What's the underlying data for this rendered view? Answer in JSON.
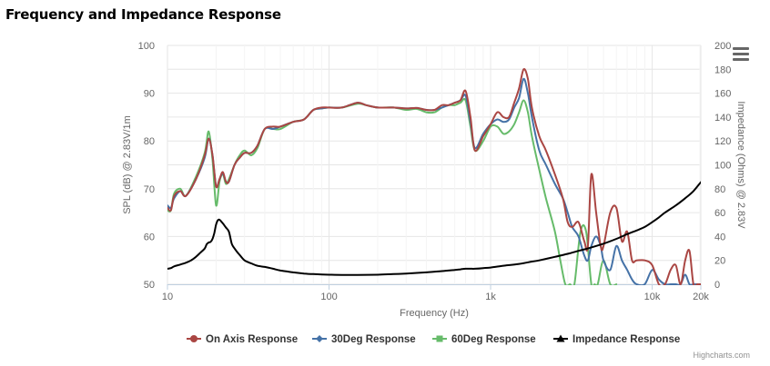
{
  "title": "Frequency and Impedance Response",
  "credits": "Highcharts.com",
  "menu_icon": "hamburger-menu-icon",
  "chart_data": {
    "type": "line",
    "title": "Frequency and Impedance Response",
    "xlabel": "Frequency (Hz)",
    "x_scale": "log",
    "xlim": [
      10,
      20000
    ],
    "x_ticks": [
      "10",
      "100",
      "1k",
      "10k",
      "20k"
    ],
    "ylabel": "SPL (dB) @ 2.83V/1m",
    "ylim": [
      50,
      100
    ],
    "y_ticks": [
      "50",
      "60",
      "70",
      "80",
      "90",
      "100"
    ],
    "y2label": "Impedance (Ohms) @ 2.83V",
    "y2lim": [
      0,
      200
    ],
    "y2_ticks": [
      "0",
      "20",
      "40",
      "60",
      "80",
      "100",
      "120",
      "140",
      "160",
      "180",
      "200"
    ],
    "grid": true,
    "legend_position": "bottom",
    "series": [
      {
        "name": "On Axis Response",
        "color": "#aa4643",
        "marker": "circle",
        "axis": "left",
        "x": [
          10,
          10.5,
          11,
          12,
          13,
          15,
          17,
          18,
          19,
          20,
          21,
          22,
          23,
          24,
          26,
          28,
          30,
          33,
          36,
          40,
          45,
          50,
          60,
          70,
          80,
          90,
          100,
          120,
          150,
          170,
          200,
          250,
          300,
          350,
          400,
          450,
          500,
          550,
          600,
          650,
          700,
          750,
          800,
          900,
          1000,
          1100,
          1200,
          1300,
          1400,
          1500,
          1600,
          1700,
          1800,
          2000,
          2200,
          2500,
          2800,
          3000,
          3200,
          3500,
          3800,
          4000,
          4200,
          4500,
          4800,
          5000,
          5500,
          6000,
          6500,
          7000,
          7500,
          8000,
          9000,
          10000,
          11000,
          12000,
          13000,
          14000,
          15000,
          16000,
          17000,
          18000,
          19000,
          20000
        ],
        "y": [
          66,
          65.5,
          68.5,
          69.5,
          68.5,
          72,
          77,
          80.5,
          77,
          70.5,
          72,
          73.5,
          71.5,
          71.5,
          75,
          76.5,
          77.5,
          77.5,
          79,
          82.5,
          83,
          83,
          84,
          84.5,
          86.5,
          87,
          87,
          87,
          88,
          87.5,
          87,
          87,
          86.8,
          86.9,
          86.5,
          86.5,
          87.5,
          87.5,
          88,
          88.5,
          90.5,
          85,
          78,
          81,
          83.5,
          86,
          85,
          85,
          88,
          91,
          95,
          93,
          87,
          81,
          78,
          73,
          68,
          63,
          62,
          63,
          59,
          58,
          73,
          65,
          58,
          58,
          65,
          66,
          59,
          61,
          55,
          55,
          55,
          54,
          50,
          50,
          53,
          54,
          50,
          55,
          57,
          50,
          50,
          50
        ]
      },
      {
        "name": "30Deg Response",
        "color": "#4572a7",
        "marker": "diamond",
        "axis": "left",
        "x": [
          10,
          10.5,
          11,
          12,
          13,
          15,
          17,
          18,
          19,
          20,
          21,
          22,
          23,
          24,
          26,
          28,
          30,
          33,
          36,
          40,
          45,
          50,
          60,
          70,
          80,
          90,
          100,
          120,
          150,
          170,
          200,
          250,
          300,
          350,
          400,
          450,
          500,
          550,
          600,
          650,
          700,
          750,
          800,
          900,
          1000,
          1100,
          1200,
          1300,
          1400,
          1500,
          1600,
          1700,
          1800,
          2000,
          2200,
          2500,
          2800,
          3000,
          3200,
          3500,
          3800,
          4000,
          4200,
          4500,
          4800,
          5000,
          5500,
          6000,
          6500,
          7000,
          7500,
          8000,
          9000,
          10000,
          11000,
          12000,
          13000,
          14000,
          15000,
          16000,
          17000,
          18000,
          19000,
          20000
        ],
        "y": [
          66.5,
          66,
          68,
          69.5,
          68.5,
          72,
          76.5,
          80.5,
          77,
          70.5,
          72,
          73.2,
          71.5,
          71.5,
          75,
          76.5,
          77.5,
          77.5,
          79,
          82.5,
          82.5,
          83,
          84,
          84.5,
          86.5,
          86.8,
          87,
          87,
          88,
          87.5,
          87,
          87,
          86.8,
          86.9,
          86.5,
          86.5,
          87,
          87.5,
          88,
          88.5,
          89.5,
          84,
          78.5,
          81.5,
          83.5,
          84.5,
          84,
          84.5,
          87,
          89,
          93,
          90,
          85,
          78,
          75,
          71,
          68,
          65,
          62,
          60,
          56,
          55,
          58,
          60,
          58,
          55,
          53,
          58,
          55,
          53,
          51,
          50,
          50,
          53,
          51,
          50,
          50,
          50,
          50,
          52,
          50,
          50,
          50,
          50
        ]
      },
      {
        "name": "60Deg Response",
        "color": "#66bb6a",
        "marker": "square",
        "axis": "left",
        "x": [
          10,
          10.5,
          11,
          12,
          13,
          15,
          17,
          18,
          19,
          20,
          21,
          22,
          23,
          24,
          26,
          28,
          30,
          33,
          36,
          40,
          45,
          50,
          60,
          70,
          80,
          90,
          100,
          120,
          150,
          170,
          200,
          250,
          300,
          350,
          400,
          450,
          500,
          550,
          600,
          650,
          700,
          750,
          800,
          900,
          1000,
          1100,
          1200,
          1300,
          1400,
          1500,
          1600,
          1700,
          1800,
          2000,
          2200,
          2500,
          2700,
          2900,
          3100,
          3300,
          3600,
          3900,
          4200,
          4400,
          4600,
          5000,
          5500,
          6000
        ],
        "y": [
          65.5,
          65.5,
          69,
          70,
          68.5,
          72.5,
          77.5,
          82,
          76,
          66.5,
          71.5,
          73,
          71,
          72,
          75,
          77,
          78,
          77,
          78.5,
          82.5,
          82.5,
          82.5,
          84,
          84.5,
          86.5,
          86.8,
          87,
          87,
          87.8,
          87.5,
          87,
          87,
          86.5,
          86.7,
          86,
          86,
          87,
          87.5,
          87.5,
          88,
          88.5,
          83,
          78,
          80,
          83,
          83,
          81.5,
          82,
          83.5,
          86,
          88.5,
          86,
          81,
          74,
          68,
          61,
          55,
          50,
          50,
          50,
          61,
          61,
          50,
          50,
          50,
          55,
          50,
          50
        ]
      },
      {
        "name": "Impedance Response",
        "color": "#000000",
        "marker": "triangle",
        "axis": "right",
        "x": [
          10,
          10.5,
          11,
          12,
          13,
          14,
          15,
          16,
          17,
          17.5,
          18,
          18.5,
          19,
          19.5,
          20,
          20.5,
          21,
          22,
          23,
          24,
          25,
          26,
          27,
          28,
          30,
          33,
          36,
          40,
          45,
          50,
          60,
          70,
          80,
          100,
          120,
          150,
          200,
          250,
          300,
          400,
          500,
          600,
          650,
          700,
          750,
          800,
          900,
          1000,
          1200,
          1500,
          1800,
          2000,
          2500,
          3000,
          3500,
          4000,
          5000,
          6000,
          7000,
          8000,
          9000,
          10000,
          11000,
          12000,
          14000,
          16000,
          18000,
          20000
        ],
        "y": [
          13,
          13.5,
          15,
          16.5,
          18,
          20,
          23,
          26.5,
          30,
          33.5,
          35,
          35.5,
          38,
          43,
          50,
          53.5,
          54,
          51,
          47.5,
          44,
          34,
          30,
          27,
          24.5,
          20,
          17.5,
          15.5,
          14.5,
          13,
          11.5,
          10,
          9,
          8.5,
          8,
          7.8,
          7.8,
          8,
          8.5,
          9,
          10,
          11,
          12,
          12.5,
          13,
          13,
          13,
          13.5,
          14,
          15.5,
          17,
          19,
          20,
          23,
          25.5,
          28,
          30,
          34,
          38,
          42,
          45,
          48,
          52,
          56,
          60,
          66,
          72,
          78,
          85.5
        ]
      }
    ]
  }
}
